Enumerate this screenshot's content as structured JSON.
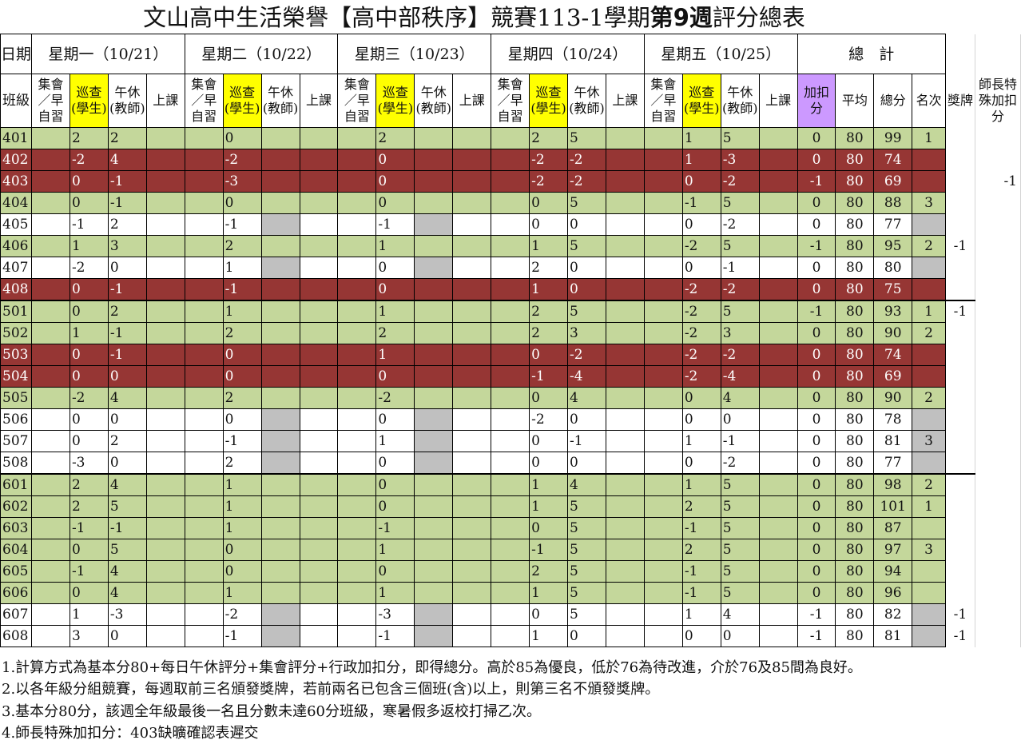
{
  "title": {
    "part1": "文山高中生活榮譽【高中部秩序】競賽113-1學期",
    "part2": "第9週",
    "part3": "評分總表"
  },
  "header": {
    "date_label": "日期",
    "days": [
      "星期一（10/21）",
      "星期二（10/22）",
      "星期三（10/23）",
      "星期四（10/24）",
      "星期五（10/25）"
    ],
    "total_label": "總　計",
    "class_label": "班級",
    "sub_columns": [
      "集會／早自習",
      "巡查(學生)",
      "午休(教師)",
      "上課"
    ],
    "bonus_label": "加扣分",
    "avg_label": "平均",
    "score_label": "總分",
    "rank_label": "名次",
    "award_label": "獎牌",
    "extra_label": "師長特殊加扣分"
  },
  "rows": [
    {
      "cls": "401",
      "c": [
        "",
        "2",
        "2",
        "",
        "",
        "0",
        "",
        "",
        "",
        "2",
        "",
        "",
        "",
        "2",
        "5",
        "",
        "",
        "1",
        "5",
        ""
      ],
      "adj": "0",
      "avg": "80",
      "tot": "99",
      "rank": "1",
      "aw": "",
      "ex": ""
    },
    {
      "cls": "402",
      "c": [
        "",
        "-2",
        "4",
        "",
        "",
        "-2",
        "",
        "",
        "",
        "0",
        "",
        "",
        "",
        "-2",
        "-2",
        "",
        "",
        "1",
        "-3",
        ""
      ],
      "adj": "0",
      "avg": "80",
      "tot": "74",
      "rank": "",
      "aw": "",
      "ex": ""
    },
    {
      "cls": "403",
      "c": [
        "",
        "0",
        "-1",
        "",
        "",
        "-3",
        "",
        "",
        "",
        "0",
        "",
        "",
        "",
        "-2",
        "-2",
        "",
        "",
        "0",
        "-2",
        ""
      ],
      "adj": "-1",
      "avg": "80",
      "tot": "69",
      "rank": "",
      "aw": "",
      "ex": "-1"
    },
    {
      "cls": "404",
      "c": [
        "",
        "0",
        "-1",
        "",
        "",
        "0",
        "",
        "",
        "",
        "0",
        "",
        "",
        "",
        "0",
        "5",
        "",
        "",
        "-1",
        "5",
        ""
      ],
      "adj": "0",
      "avg": "80",
      "tot": "88",
      "rank": "3",
      "aw": "",
      "ex": ""
    },
    {
      "cls": "405",
      "c": [
        "",
        "-1",
        "2",
        "",
        "",
        "-1",
        "",
        "",
        "",
        "-1",
        "",
        "",
        "",
        "0",
        "0",
        "",
        "",
        "0",
        "-2",
        ""
      ],
      "adj": "0",
      "avg": "80",
      "tot": "77",
      "rank": "",
      "aw": "",
      "ex": ""
    },
    {
      "cls": "406",
      "c": [
        "",
        "1",
        "3",
        "",
        "",
        "2",
        "",
        "",
        "",
        "1",
        "",
        "",
        "",
        "1",
        "5",
        "",
        "",
        "-2",
        "5",
        ""
      ],
      "adj": "-1",
      "avg": "80",
      "tot": "95",
      "rank": "2",
      "aw": "-1",
      "ex": ""
    },
    {
      "cls": "407",
      "c": [
        "",
        "-2",
        "0",
        "",
        "",
        "1",
        "",
        "",
        "",
        "0",
        "",
        "",
        "",
        "2",
        "0",
        "",
        "",
        "0",
        "-1",
        ""
      ],
      "adj": "0",
      "avg": "80",
      "tot": "80",
      "rank": "",
      "aw": "",
      "ex": ""
    },
    {
      "cls": "408",
      "c": [
        "",
        "0",
        "-1",
        "",
        "",
        "-1",
        "",
        "",
        "",
        "0",
        "",
        "",
        "",
        "1",
        "0",
        "",
        "",
        "-2",
        "-2",
        ""
      ],
      "adj": "0",
      "avg": "80",
      "tot": "75",
      "rank": "",
      "aw": "",
      "ex": ""
    },
    {
      "cls": "501",
      "c": [
        "",
        "0",
        "2",
        "",
        "",
        "1",
        "",
        "",
        "",
        "1",
        "",
        "",
        "",
        "2",
        "5",
        "",
        "",
        "-2",
        "5",
        ""
      ],
      "adj": "-1",
      "avg": "80",
      "tot": "93",
      "rank": "1",
      "aw": "-1",
      "ex": ""
    },
    {
      "cls": "502",
      "c": [
        "",
        "1",
        "-1",
        "",
        "",
        "2",
        "",
        "",
        "",
        "2",
        "",
        "",
        "",
        "2",
        "3",
        "",
        "",
        "-2",
        "3",
        ""
      ],
      "adj": "0",
      "avg": "80",
      "tot": "90",
      "rank": "2",
      "aw": "",
      "ex": ""
    },
    {
      "cls": "503",
      "c": [
        "",
        "0",
        "-1",
        "",
        "",
        "0",
        "",
        "",
        "",
        "1",
        "",
        "",
        "",
        "0",
        "-2",
        "",
        "",
        "-2",
        "-2",
        ""
      ],
      "adj": "0",
      "avg": "80",
      "tot": "74",
      "rank": "",
      "aw": "",
      "ex": ""
    },
    {
      "cls": "504",
      "c": [
        "",
        "0",
        "0",
        "",
        "",
        "0",
        "",
        "",
        "",
        "0",
        "",
        "",
        "",
        "-1",
        "-4",
        "",
        "",
        "-2",
        "-4",
        ""
      ],
      "adj": "0",
      "avg": "80",
      "tot": "69",
      "rank": "",
      "aw": "",
      "ex": ""
    },
    {
      "cls": "505",
      "c": [
        "",
        "-2",
        "4",
        "",
        "",
        "2",
        "",
        "",
        "",
        "-2",
        "",
        "",
        "",
        "0",
        "4",
        "",
        "",
        "0",
        "4",
        ""
      ],
      "adj": "0",
      "avg": "80",
      "tot": "90",
      "rank": "2",
      "aw": "",
      "ex": ""
    },
    {
      "cls": "506",
      "c": [
        "",
        "0",
        "0",
        "",
        "",
        "0",
        "",
        "",
        "",
        "0",
        "",
        "",
        "",
        "-2",
        "0",
        "",
        "",
        "0",
        "0",
        ""
      ],
      "adj": "0",
      "avg": "80",
      "tot": "78",
      "rank": "",
      "aw": "",
      "ex": ""
    },
    {
      "cls": "507",
      "c": [
        "",
        "0",
        "2",
        "",
        "",
        "-1",
        "",
        "",
        "",
        "1",
        "",
        "",
        "",
        "0",
        "-1",
        "",
        "",
        "1",
        "-1",
        ""
      ],
      "adj": "0",
      "avg": "80",
      "tot": "81",
      "rank": "3",
      "aw": "",
      "ex": ""
    },
    {
      "cls": "508",
      "c": [
        "",
        "-3",
        "0",
        "",
        "",
        "2",
        "",
        "",
        "",
        "0",
        "",
        "",
        "",
        "0",
        "0",
        "",
        "",
        "0",
        "-2",
        ""
      ],
      "adj": "0",
      "avg": "80",
      "tot": "77",
      "rank": "",
      "aw": "",
      "ex": ""
    },
    {
      "cls": "601",
      "c": [
        "",
        "2",
        "4",
        "",
        "",
        "1",
        "",
        "",
        "",
        "0",
        "",
        "",
        "",
        "1",
        "4",
        "",
        "",
        "1",
        "5",
        ""
      ],
      "adj": "0",
      "avg": "80",
      "tot": "98",
      "rank": "2",
      "aw": "",
      "ex": ""
    },
    {
      "cls": "602",
      "c": [
        "",
        "2",
        "5",
        "",
        "",
        "1",
        "",
        "",
        "",
        "0",
        "",
        "",
        "",
        "1",
        "5",
        "",
        "",
        "2",
        "5",
        ""
      ],
      "adj": "0",
      "avg": "80",
      "tot": "101",
      "rank": "1",
      "aw": "",
      "ex": ""
    },
    {
      "cls": "603",
      "c": [
        "",
        "-1",
        "-1",
        "",
        "",
        "1",
        "",
        "",
        "",
        "-1",
        "",
        "",
        "",
        "0",
        "5",
        "",
        "",
        "-1",
        "5",
        ""
      ],
      "adj": "0",
      "avg": "80",
      "tot": "87",
      "rank": "",
      "aw": "",
      "ex": ""
    },
    {
      "cls": "604",
      "c": [
        "",
        "0",
        "5",
        "",
        "",
        "0",
        "",
        "",
        "",
        "1",
        "",
        "",
        "",
        "-1",
        "5",
        "",
        "",
        "2",
        "5",
        ""
      ],
      "adj": "0",
      "avg": "80",
      "tot": "97",
      "rank": "3",
      "aw": "",
      "ex": ""
    },
    {
      "cls": "605",
      "c": [
        "",
        "-1",
        "4",
        "",
        "",
        "0",
        "",
        "",
        "",
        "0",
        "",
        "",
        "",
        "2",
        "5",
        "",
        "",
        "-1",
        "5",
        ""
      ],
      "adj": "0",
      "avg": "80",
      "tot": "94",
      "rank": "",
      "aw": "",
      "ex": ""
    },
    {
      "cls": "606",
      "c": [
        "",
        "0",
        "4",
        "",
        "",
        "1",
        "",
        "",
        "",
        "1",
        "",
        "",
        "",
        "1",
        "5",
        "",
        "",
        "-1",
        "5",
        ""
      ],
      "adj": "0",
      "avg": "80",
      "tot": "96",
      "rank": "",
      "aw": "",
      "ex": ""
    },
    {
      "cls": "607",
      "c": [
        "",
        "1",
        "-3",
        "",
        "",
        "-2",
        "",
        "",
        "",
        "-3",
        "",
        "",
        "",
        "0",
        "5",
        "",
        "",
        "1",
        "4",
        ""
      ],
      "adj": "-1",
      "avg": "80",
      "tot": "82",
      "rank": "",
      "aw": "-1",
      "ex": ""
    },
    {
      "cls": "608",
      "c": [
        "",
        "3",
        "0",
        "",
        "",
        "-1",
        "",
        "",
        "",
        "-1",
        "",
        "",
        "",
        "1",
        "0",
        "",
        "",
        "0",
        "0",
        ""
      ],
      "adj": "-1",
      "avg": "80",
      "tot": "81",
      "rank": "",
      "aw": "-1",
      "ex": ""
    }
  ],
  "row_colors": [
    "g",
    "r",
    "r",
    "g",
    "w",
    "g",
    "w",
    "r",
    "g",
    "g",
    "r",
    "r",
    "g",
    "w",
    "w",
    "w",
    "g",
    "g",
    "g",
    "g",
    "g",
    "g",
    "w",
    "w"
  ],
  "notes": [
    "1.計算方式為基本分80+每日午休評分+集會評分+行政加扣分，即得總分。高於85為優良，低於76為待改進，介於76及85間為良好。",
    "2.以各年級分組競賽，每週取前三名頒發獎牌，若前兩名已包含三個班(含)以上，則第三名不頒發獎牌。",
    "3.基本分80分，該週全年級最後一名且分數未達60分班級，寒暑假多返校打掃乙次。",
    "4.師長特殊加扣分：403缺曠確認表遲交"
  ],
  "colors": {
    "good_row": "#c4d79b",
    "bad_row": "#963634",
    "patrol_header": "#ffff00",
    "adjust_header": "#cc99ff",
    "empty_cell": "#c0c0c0"
  }
}
